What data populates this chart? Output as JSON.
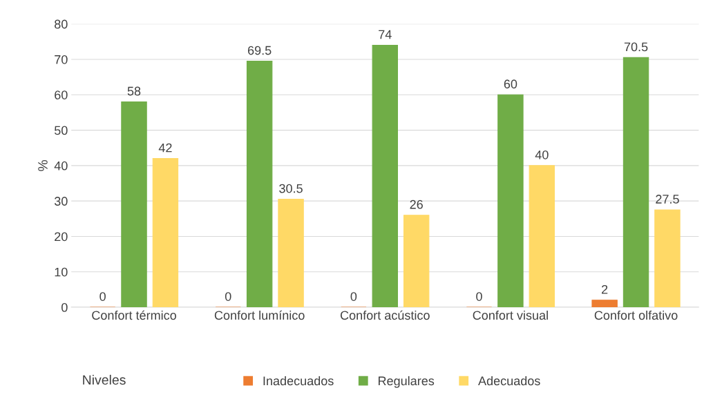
{
  "chart_data": {
    "type": "bar",
    "ylabel": "%",
    "legend_title": "Niveles",
    "categories": [
      "Confort térmico",
      "Confort lumínico",
      "Confort acústico",
      "Confort visual",
      "Confort olfativo"
    ],
    "series": [
      {
        "name": "Inadecuados",
        "color": "#ed7d31",
        "values": [
          0,
          0,
          0,
          0,
          2
        ]
      },
      {
        "name": "Regulares",
        "color": "#70ad47",
        "values": [
          58,
          69.5,
          74,
          60,
          70.5
        ]
      },
      {
        "name": "Adecuados",
        "color": "#ffd966",
        "values": [
          42,
          30.5,
          26,
          40,
          27.5
        ]
      }
    ],
    "ylim": [
      0,
      80
    ],
    "yticks": [
      0,
      10,
      20,
      30,
      40,
      50,
      60,
      70,
      80
    ],
    "grid": "y",
    "legend": "bottom",
    "data_labels": true
  }
}
